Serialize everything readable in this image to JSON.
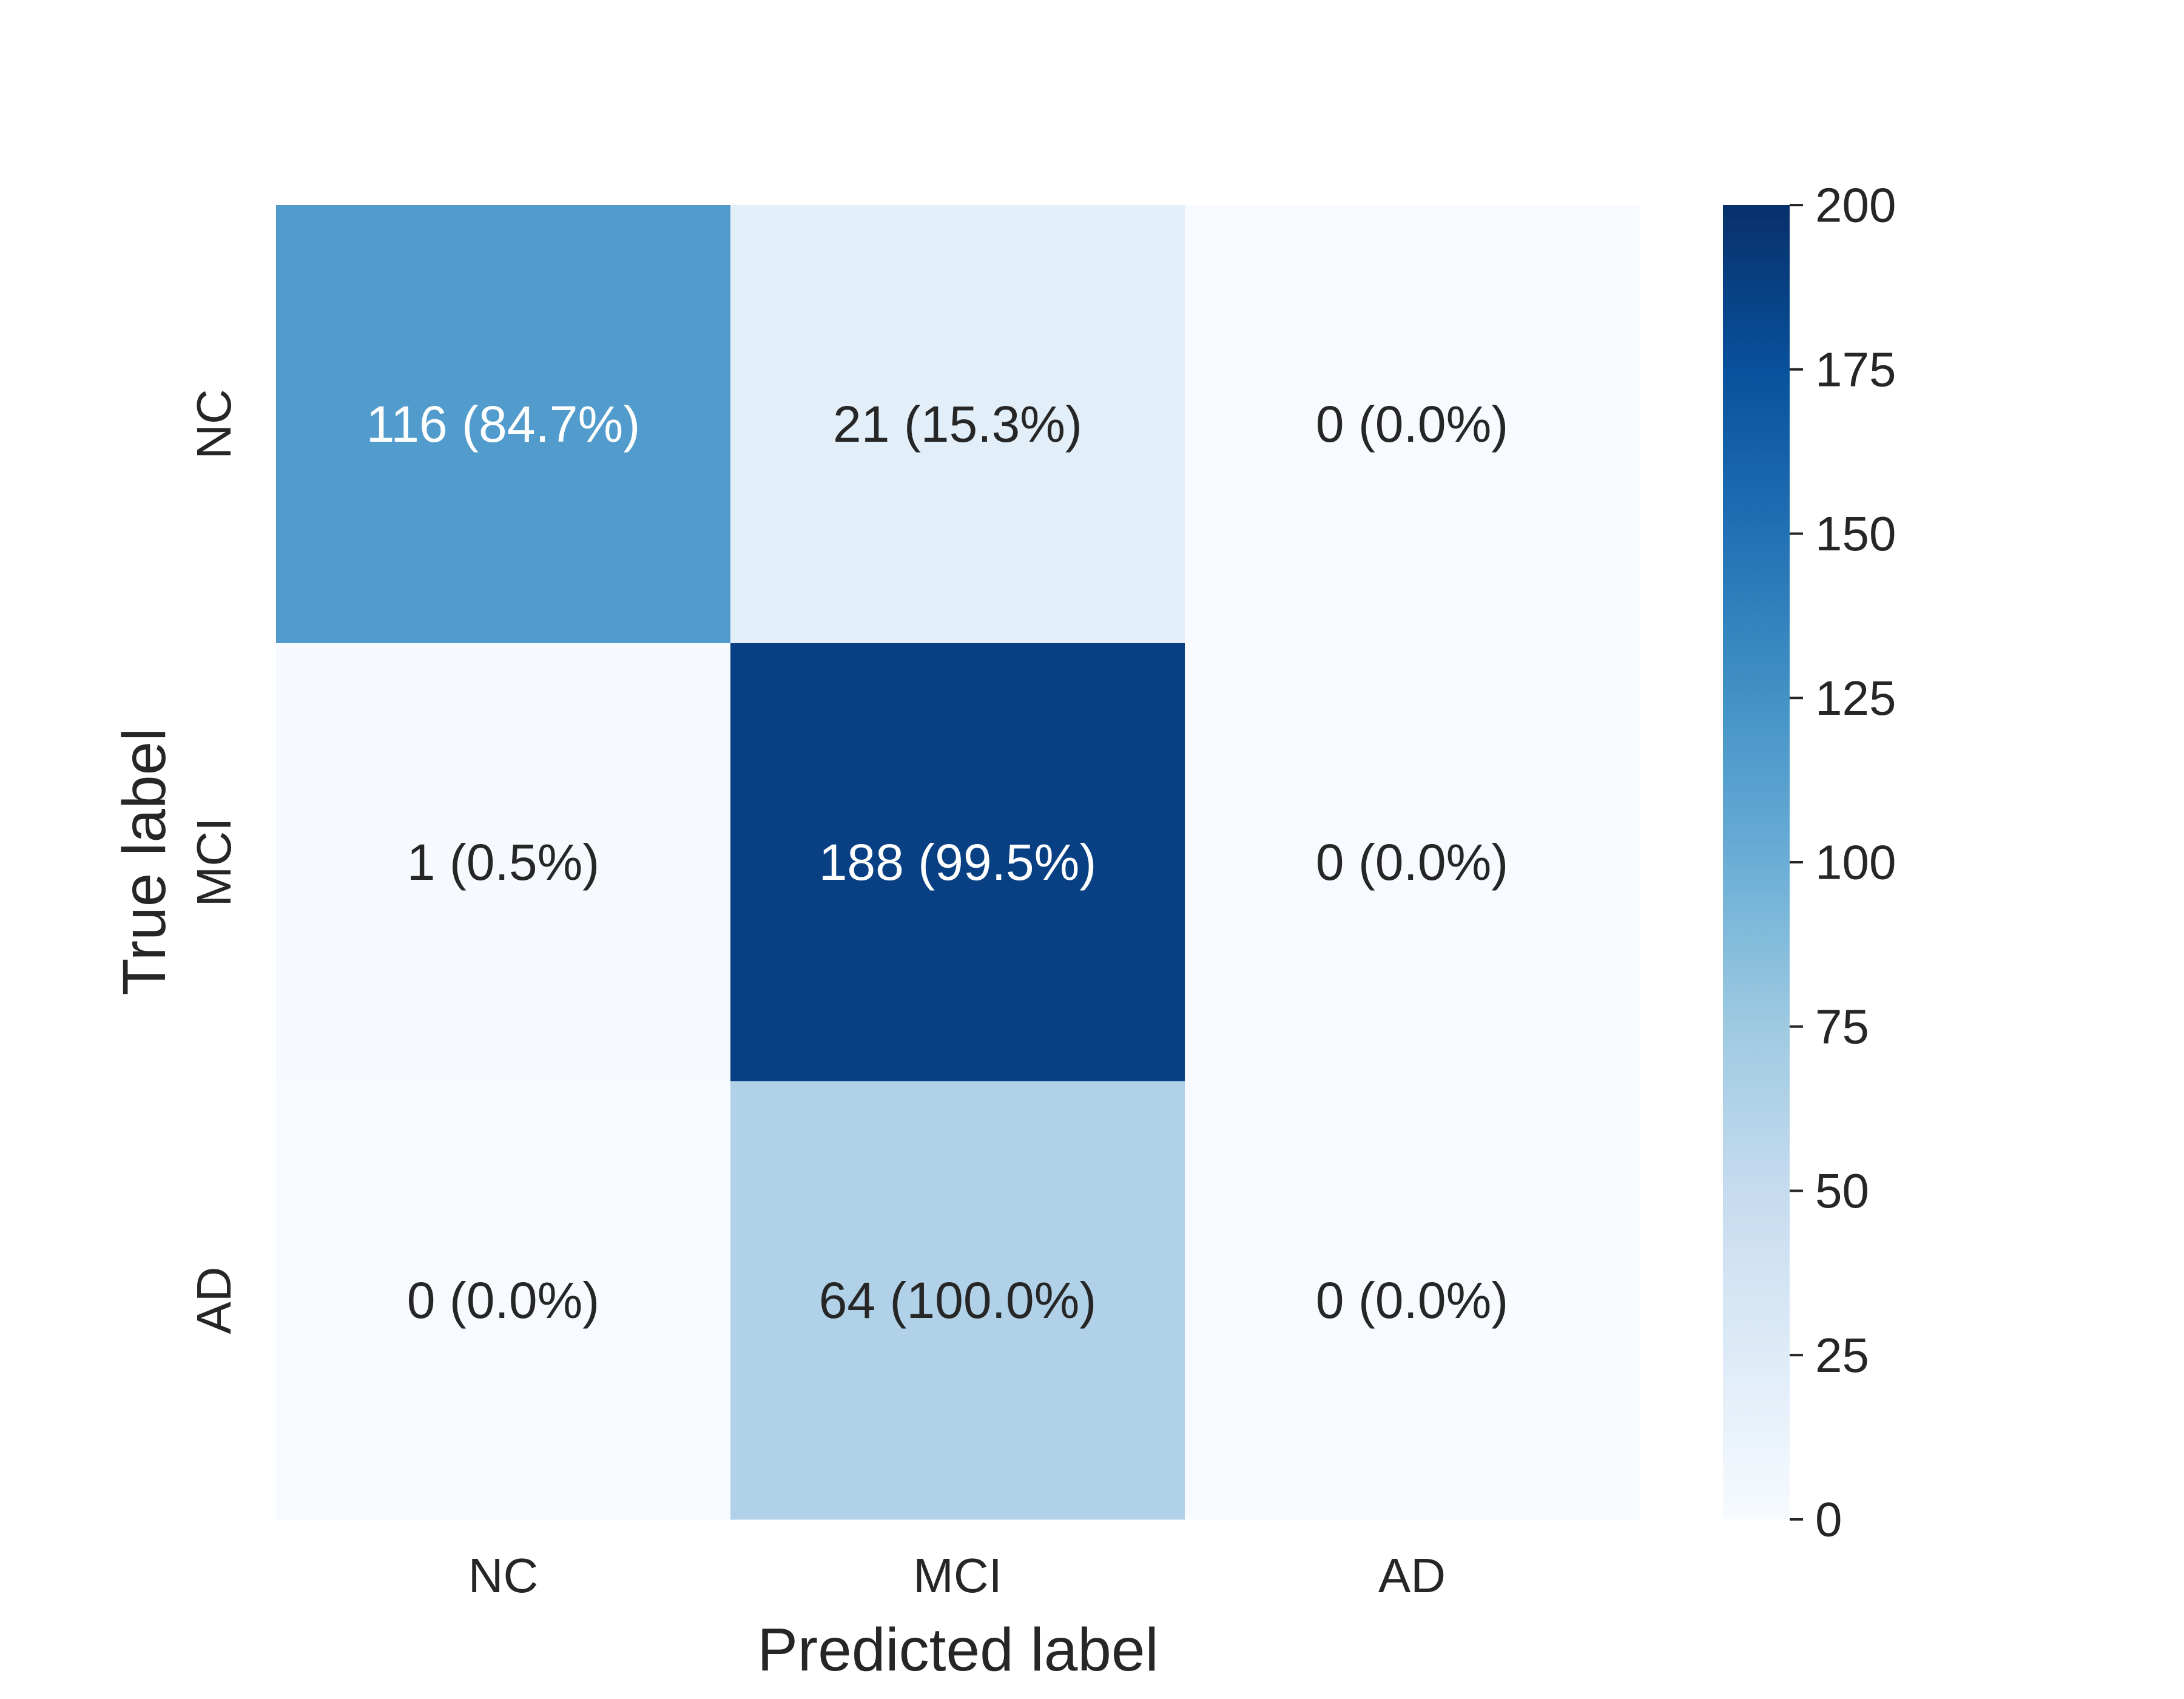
{
  "chart_data": {
    "type": "heatmap",
    "xlabel": "Predicted label",
    "ylabel": "True label",
    "x_categories": [
      "NC",
      "MCI",
      "AD"
    ],
    "y_categories": [
      "NC",
      "MCI",
      "AD"
    ],
    "values": [
      [
        116,
        21,
        0
      ],
      [
        1,
        188,
        0
      ],
      [
        0,
        64,
        0
      ]
    ],
    "cell_labels": [
      [
        "116 (84.7%)",
        "21 (15.3%)",
        "0 (0.0%)"
      ],
      [
        "1 (0.5%)",
        "188 (99.5%)",
        "0 (0.0%)"
      ],
      [
        "0 (0.0%)",
        "64 (100.0%)",
        "0 (0.0%)"
      ]
    ],
    "colorbar": {
      "min": 0,
      "max": 200,
      "ticks": [
        0,
        25,
        50,
        75,
        100,
        125,
        150,
        175,
        200
      ],
      "tick_labels": [
        "0",
        "25",
        "50",
        "75",
        "100",
        "125",
        "150",
        "175",
        "200"
      ]
    },
    "colormap": "Blues",
    "grid": false
  }
}
